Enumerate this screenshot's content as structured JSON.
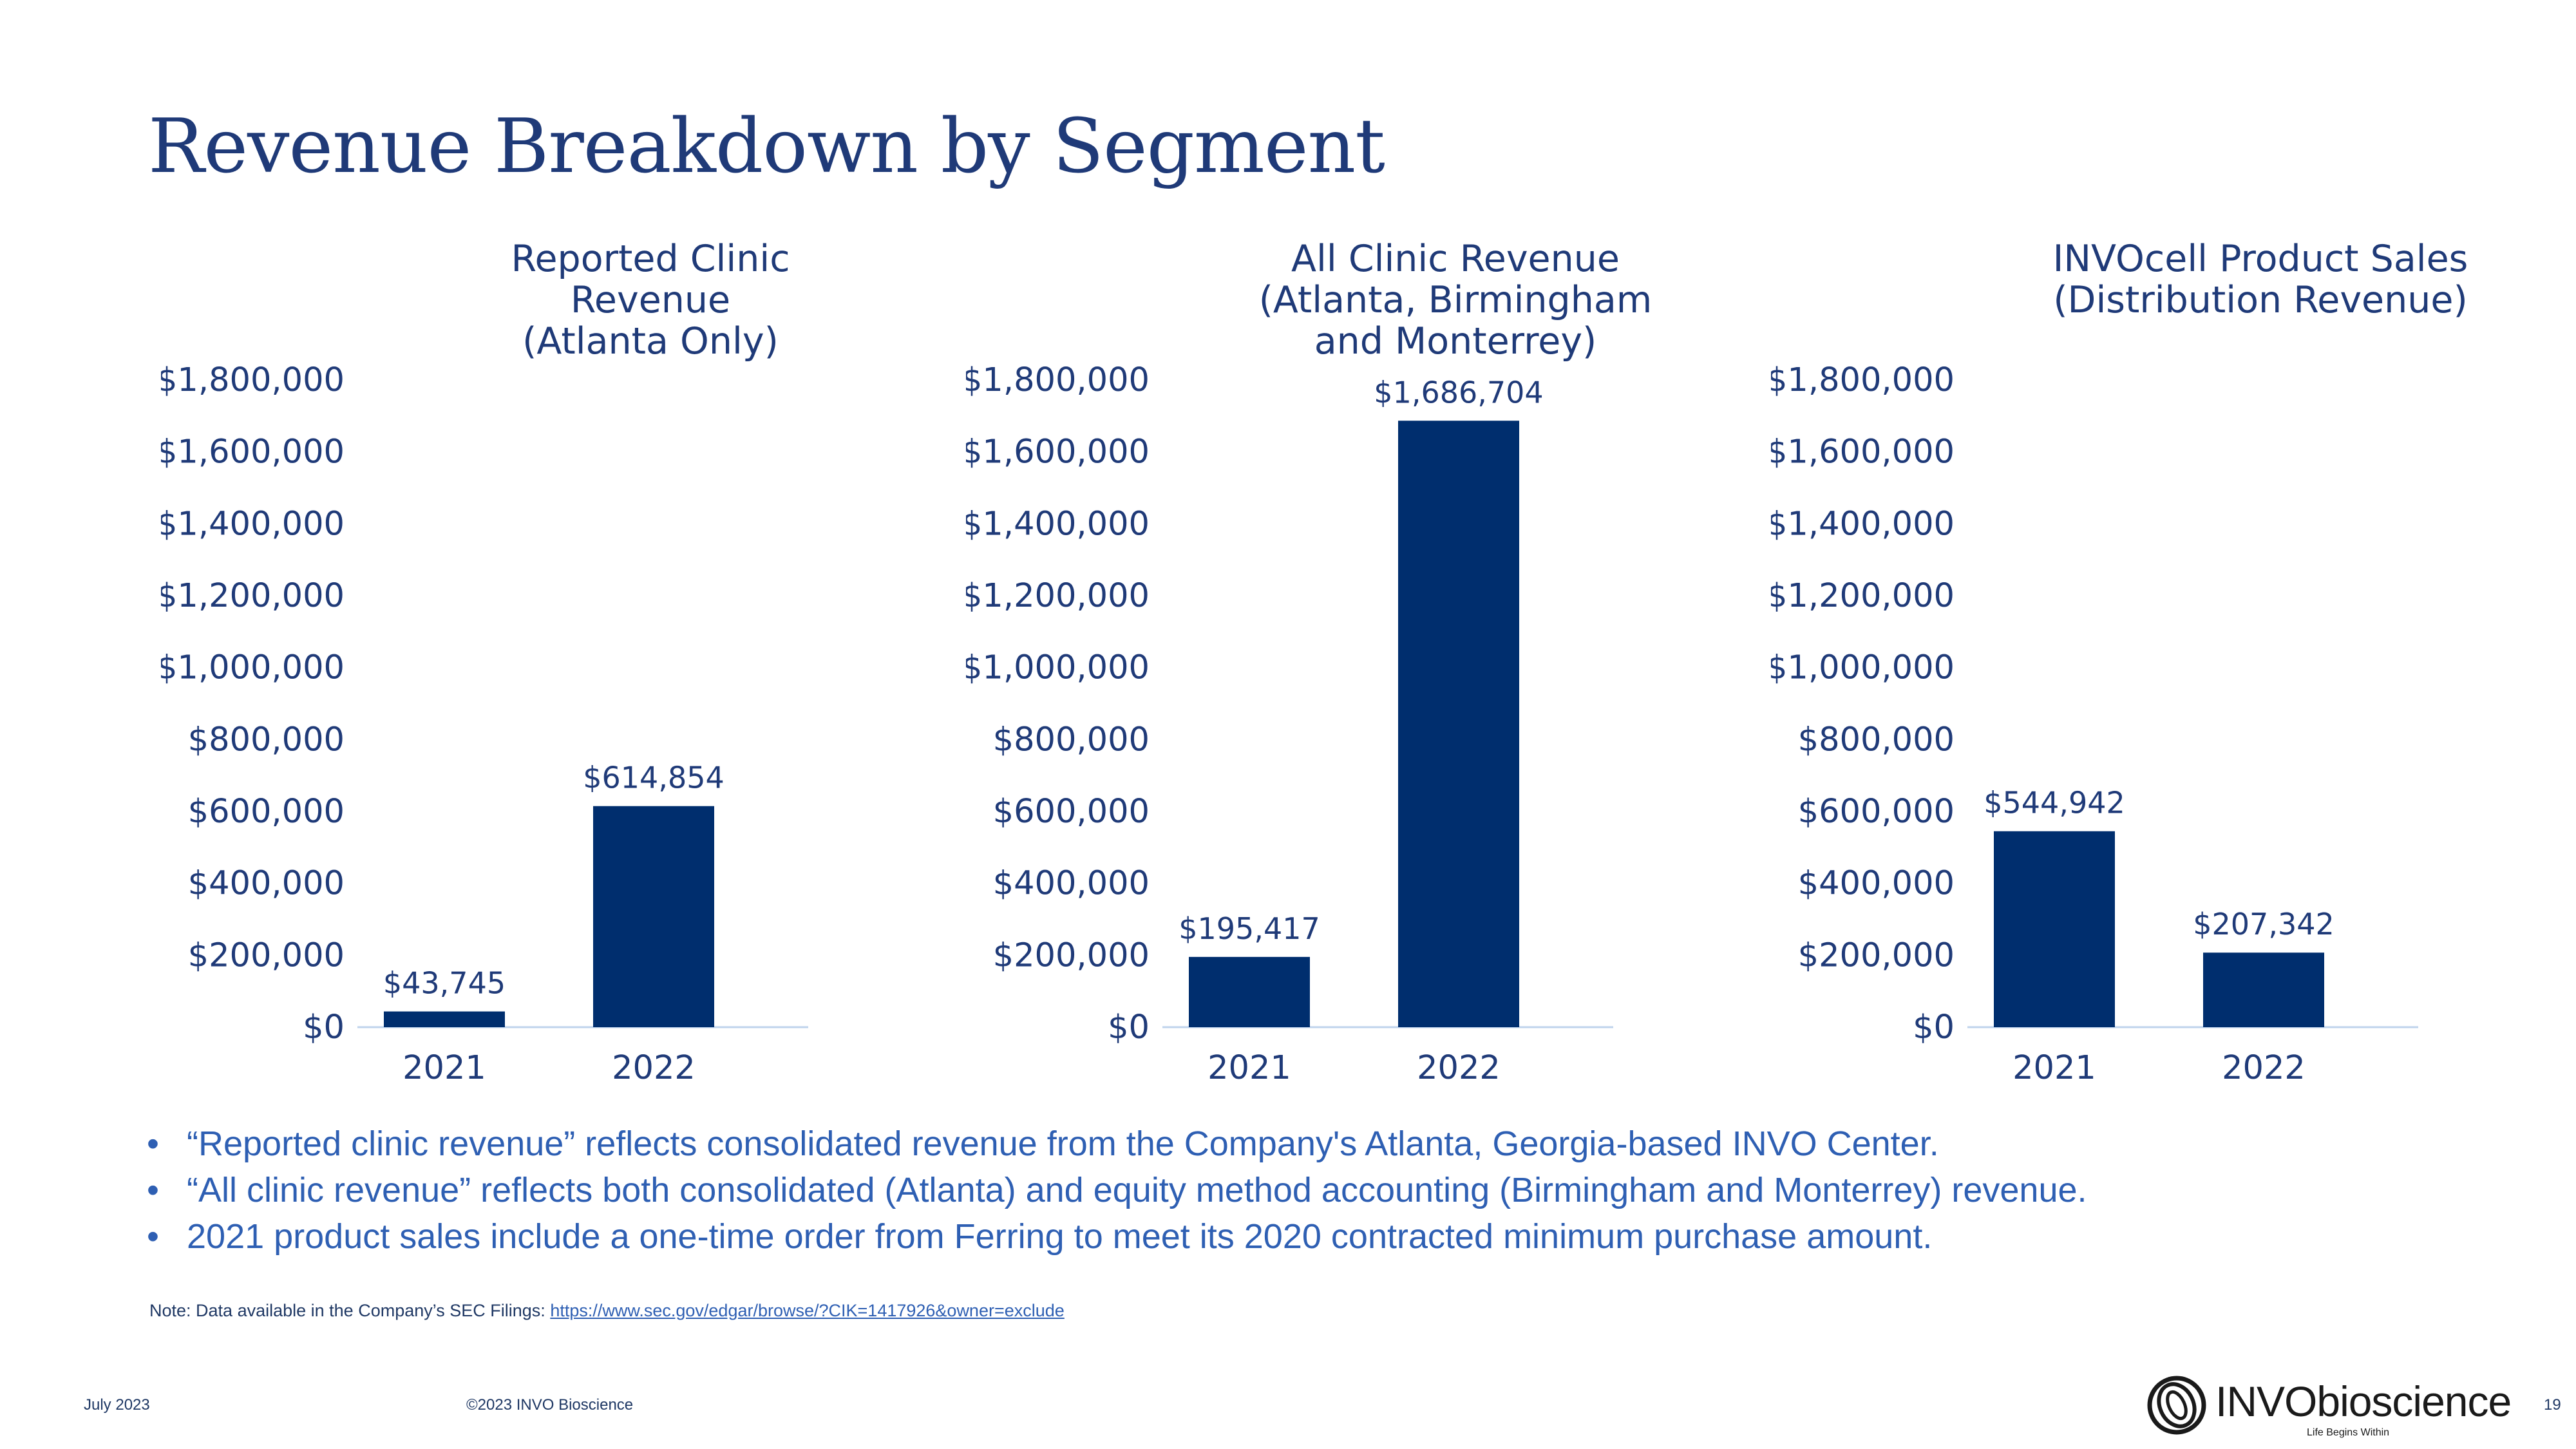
{
  "title": "Revenue Breakdown by Segment",
  "chart_data": [
    {
      "type": "bar",
      "title": "Reported Clinic\nRevenue\n(Atlanta Only)",
      "categories": [
        "2021",
        "2022"
      ],
      "values": [
        43745,
        614854
      ],
      "data_labels": [
        "$43,745",
        "$614,854"
      ],
      "ylim": [
        0,
        1800000
      ],
      "yticks": [
        "$0",
        "$200,000",
        "$400,000",
        "$600,000",
        "$800,000",
        "$1,000,000",
        "$1,200,000",
        "$1,400,000",
        "$1,600,000",
        "$1,800,000"
      ],
      "grid": false,
      "bar_color": "#002e6e",
      "xlabel": "",
      "ylabel": ""
    },
    {
      "type": "bar",
      "title": "All Clinic Revenue\n(Atlanta, Birmingham\nand Monterrey)",
      "categories": [
        "2021",
        "2022"
      ],
      "values": [
        195417,
        1686704
      ],
      "data_labels": [
        "$195,417",
        "$1,686,704"
      ],
      "ylim": [
        0,
        1800000
      ],
      "yticks": [
        "$0",
        "$200,000",
        "$400,000",
        "$600,000",
        "$800,000",
        "$1,000,000",
        "$1,200,000",
        "$1,400,000",
        "$1,600,000",
        "$1,800,000"
      ],
      "grid": false,
      "bar_color": "#002e6e",
      "xlabel": "",
      "ylabel": ""
    },
    {
      "type": "bar",
      "title": "INVOcell Product Sales\n(Distribution Revenue)",
      "categories": [
        "2021",
        "2022"
      ],
      "values": [
        544942,
        207342
      ],
      "data_labels": [
        "$544,942",
        "$207,342"
      ],
      "ylim": [
        0,
        1800000
      ],
      "yticks": [
        "$0",
        "$200,000",
        "$400,000",
        "$600,000",
        "$800,000",
        "$1,000,000",
        "$1,200,000",
        "$1,400,000",
        "$1,600,000",
        "$1,800,000"
      ],
      "grid": false,
      "bar_color": "#002e6e",
      "xlabel": "",
      "ylabel": ""
    }
  ],
  "bullets": [
    "“Reported clinic revenue” reflects consolidated revenue from the Company's Atlanta, Georgia-based INVO Center.",
    "“All clinic revenue” reflects both consolidated (Atlanta) and equity method accounting (Birmingham and Monterrey) revenue.",
    "2021 product sales include a one-time order from Ferring to meet its 2020 contracted minimum purchase amount."
  ],
  "bullet_symbol": "•",
  "note": {
    "prefix": "Note: Data available in the Company’s SEC Filings: ",
    "link": "https://www.sec.gov/edgar/browse/?CIK=1417926&owner=exclude"
  },
  "footer": {
    "date": "July 2023",
    "copyright": "©2023 INVO Bioscience",
    "page_number": "19"
  },
  "logo": {
    "wordmark": "INVObioscience",
    "tagline": "Life Begins Within"
  }
}
